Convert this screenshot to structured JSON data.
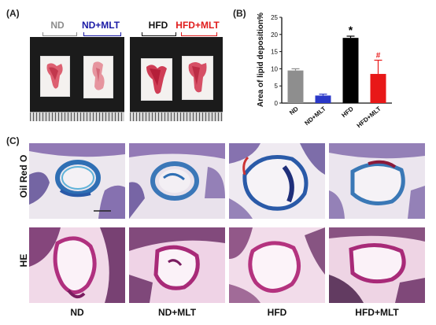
{
  "panels": {
    "a": "(A)",
    "b": "(B)",
    "c": "(C)"
  },
  "panel_a": {
    "groups": [
      {
        "label": "ND",
        "color": "#8c8c8c"
      },
      {
        "label": "ND+MLT",
        "color": "#1a1aa6"
      },
      {
        "label": "HFD",
        "color": "#111111"
      },
      {
        "label": "HFD+MLT",
        "color": "#e01b1b"
      }
    ]
  },
  "chart_data": {
    "type": "bar",
    "categories": [
      "ND",
      "ND+MLT",
      "HFD",
      "HFD+MLT"
    ],
    "values": [
      9.5,
      2.2,
      19.0,
      8.5
    ],
    "errors": [
      0.5,
      0.4,
      0.5,
      4.0
    ],
    "colors": [
      "#8e8e8e",
      "#2a38c8",
      "#000000",
      "#e81818"
    ],
    "significance": [
      "",
      "",
      "*",
      "#"
    ],
    "ylabel": "Area of lipid deposition%",
    "ylim": [
      0,
      25
    ],
    "yticks": [
      0,
      5,
      10,
      15,
      20,
      25
    ],
    "grid": false
  },
  "panel_c": {
    "rows": [
      "Oil Red O",
      "HE"
    ],
    "columns": [
      "ND",
      "ND+MLT",
      "HFD",
      "HFD+MLT"
    ]
  }
}
